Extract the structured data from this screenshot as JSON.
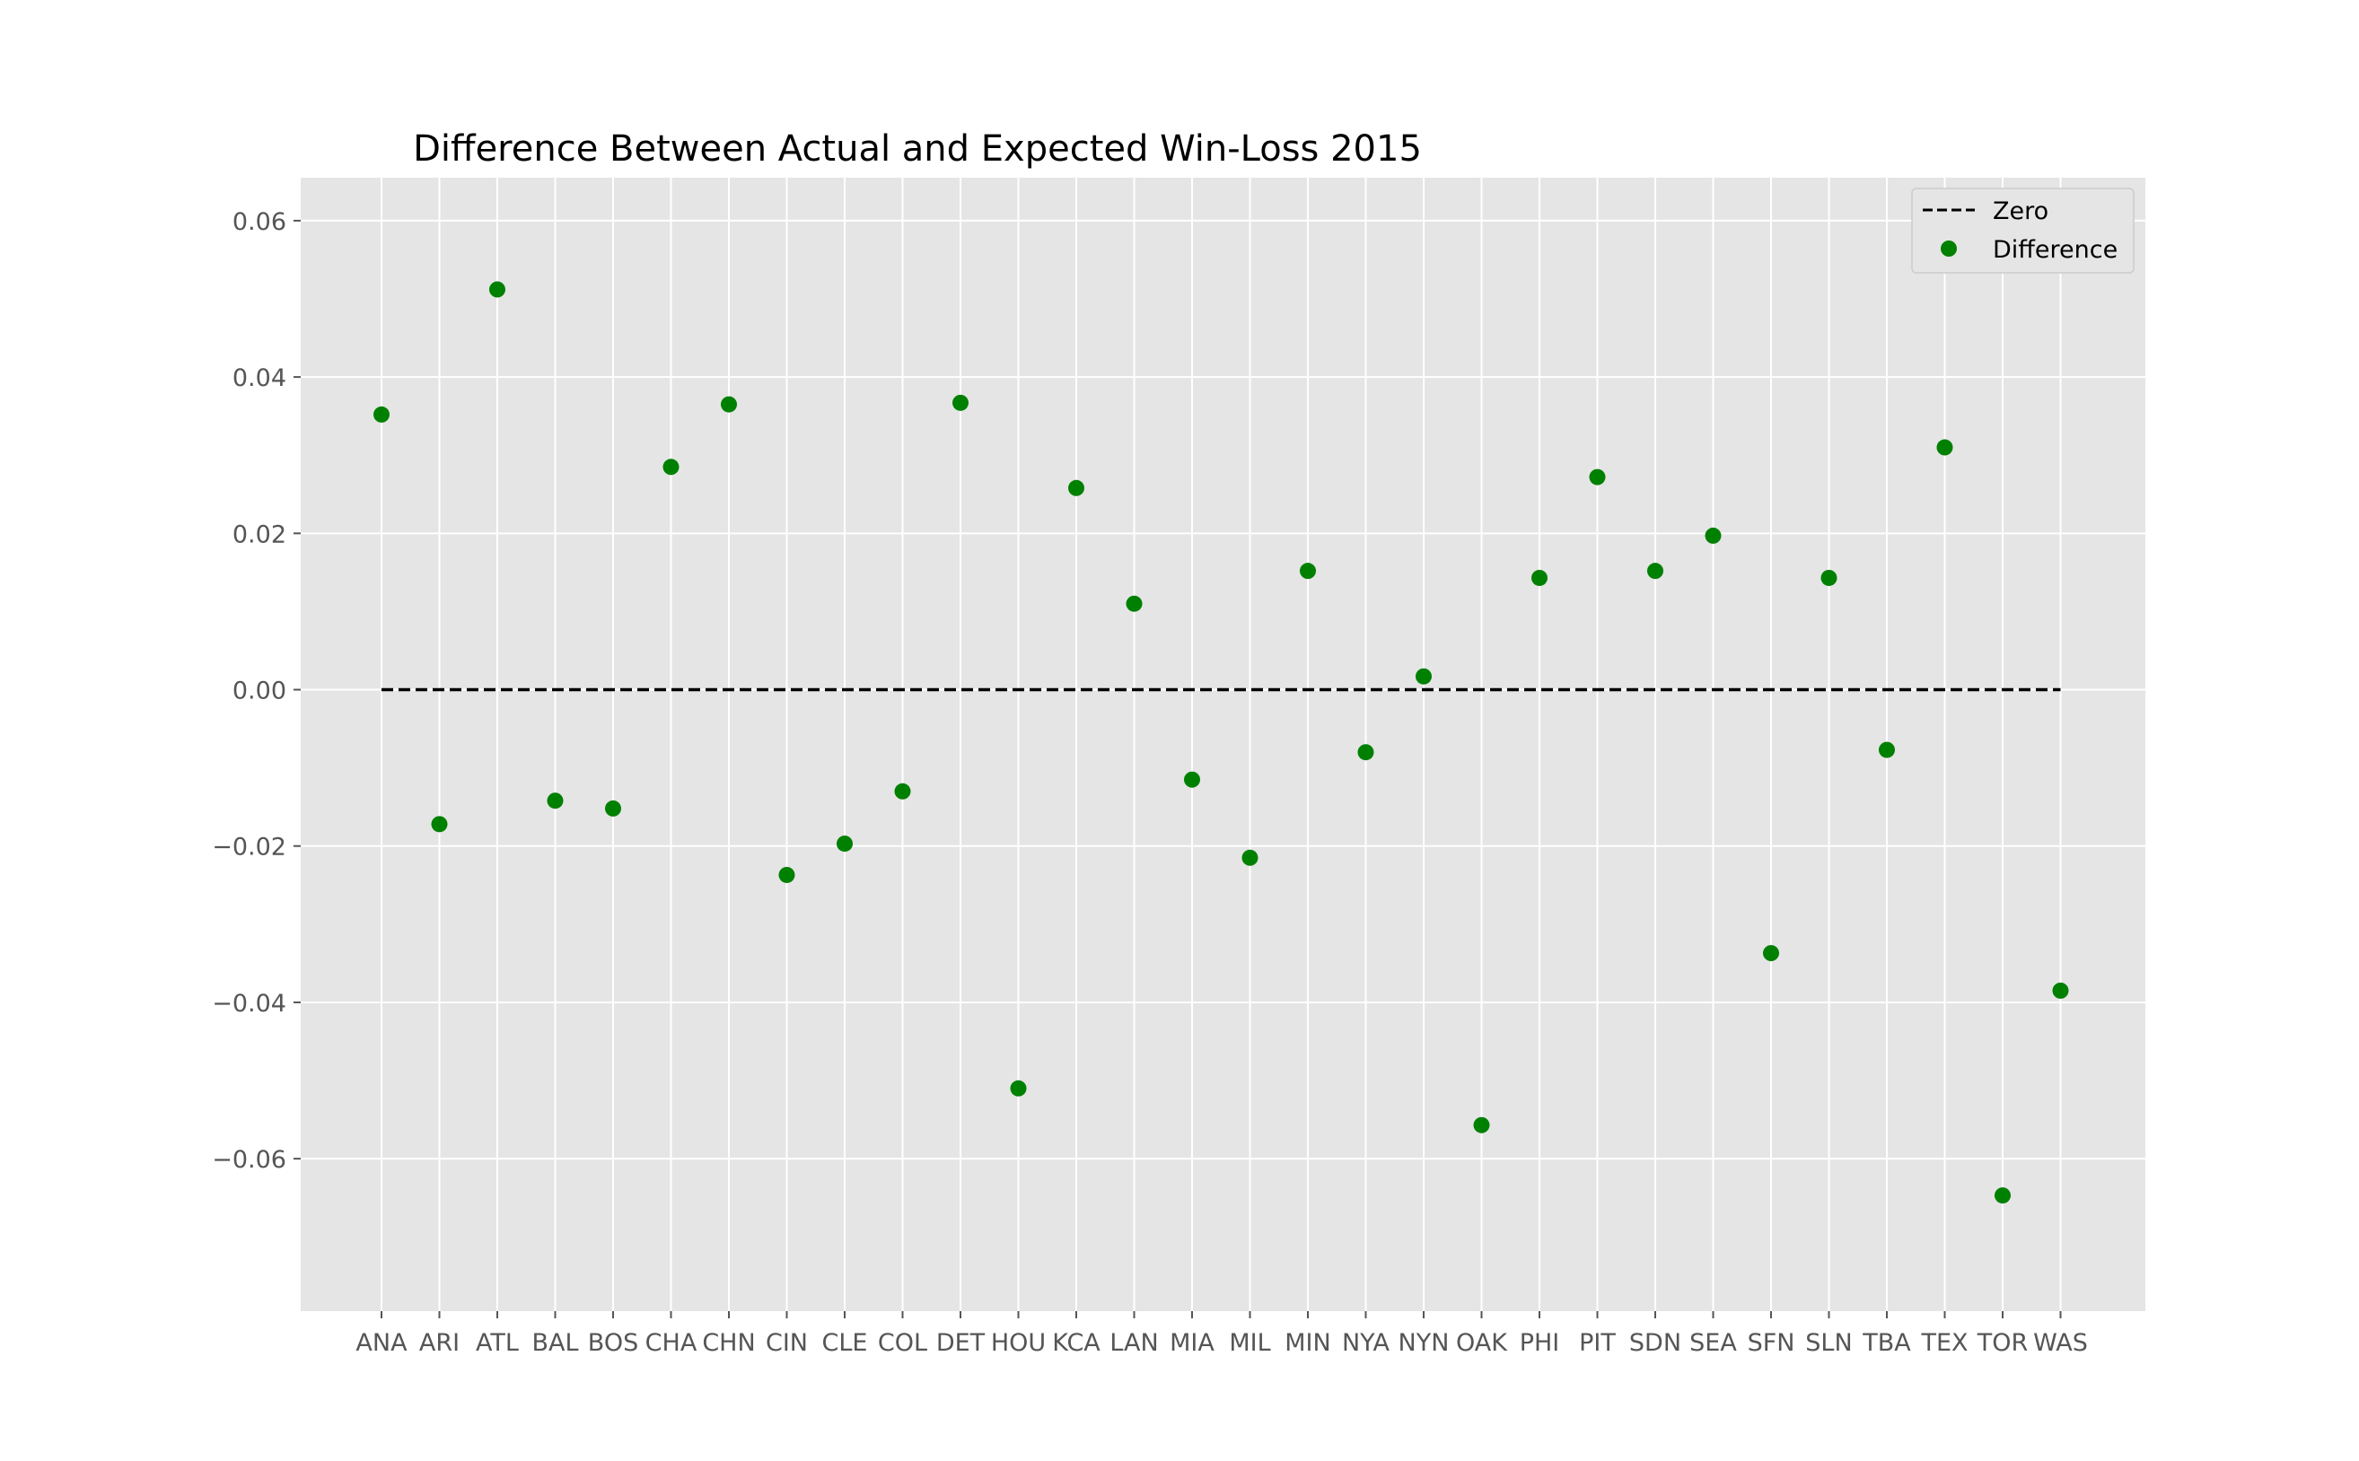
{
  "chart_data": {
    "type": "scatter",
    "title": "Difference Between Actual and Expected Win-Loss 2015",
    "xlabel": "",
    "ylabel": "",
    "categories": [
      "ANA",
      "ARI",
      "ATL",
      "BAL",
      "BOS",
      "CHA",
      "CHN",
      "CIN",
      "CLE",
      "COL",
      "DET",
      "HOU",
      "KCA",
      "LAN",
      "MIA",
      "MIL",
      "MIN",
      "NYA",
      "NYN",
      "OAK",
      "PHI",
      "PIT",
      "SDN",
      "SEA",
      "SFN",
      "SLN",
      "TBA",
      "TEX",
      "TOR",
      "WAS"
    ],
    "ylim": [
      -0.0795,
      0.0655
    ],
    "yticks": [
      0.06,
      0.04,
      0.02,
      0.0,
      -0.02,
      -0.04,
      -0.06
    ],
    "ytick_labels": [
      "0.06",
      "0.04",
      "0.02",
      "0.00",
      "−0.02",
      "−0.04",
      "−0.06"
    ],
    "grid": true,
    "legend_position": "top-right",
    "series": [
      {
        "name": "Zero",
        "type": "line",
        "style": "dashed",
        "color": "#000000",
        "values": [
          0,
          0,
          0,
          0,
          0,
          0,
          0,
          0,
          0,
          0,
          0,
          0,
          0,
          0,
          0,
          0,
          0,
          0,
          0,
          0,
          0,
          0,
          0,
          0,
          0,
          0,
          0,
          0,
          0,
          0
        ]
      },
      {
        "name": "Difference",
        "type": "scatter",
        "color": "#008000",
        "values": [
          0.0352,
          -0.0172,
          0.0512,
          -0.0142,
          -0.0152,
          0.0285,
          0.0365,
          -0.0237,
          -0.0197,
          -0.013,
          0.0367,
          -0.051,
          0.0258,
          0.011,
          -0.0115,
          -0.0215,
          0.0152,
          -0.008,
          0.0017,
          -0.0557,
          0.0143,
          0.0272,
          0.0152,
          0.0197,
          -0.0337,
          0.0143,
          -0.0077,
          0.031,
          -0.0647,
          -0.0385
        ]
      }
    ]
  },
  "colors": {
    "plot_background": "#e5e5e5",
    "grid": "#ffffff",
    "marker": "#008000"
  }
}
